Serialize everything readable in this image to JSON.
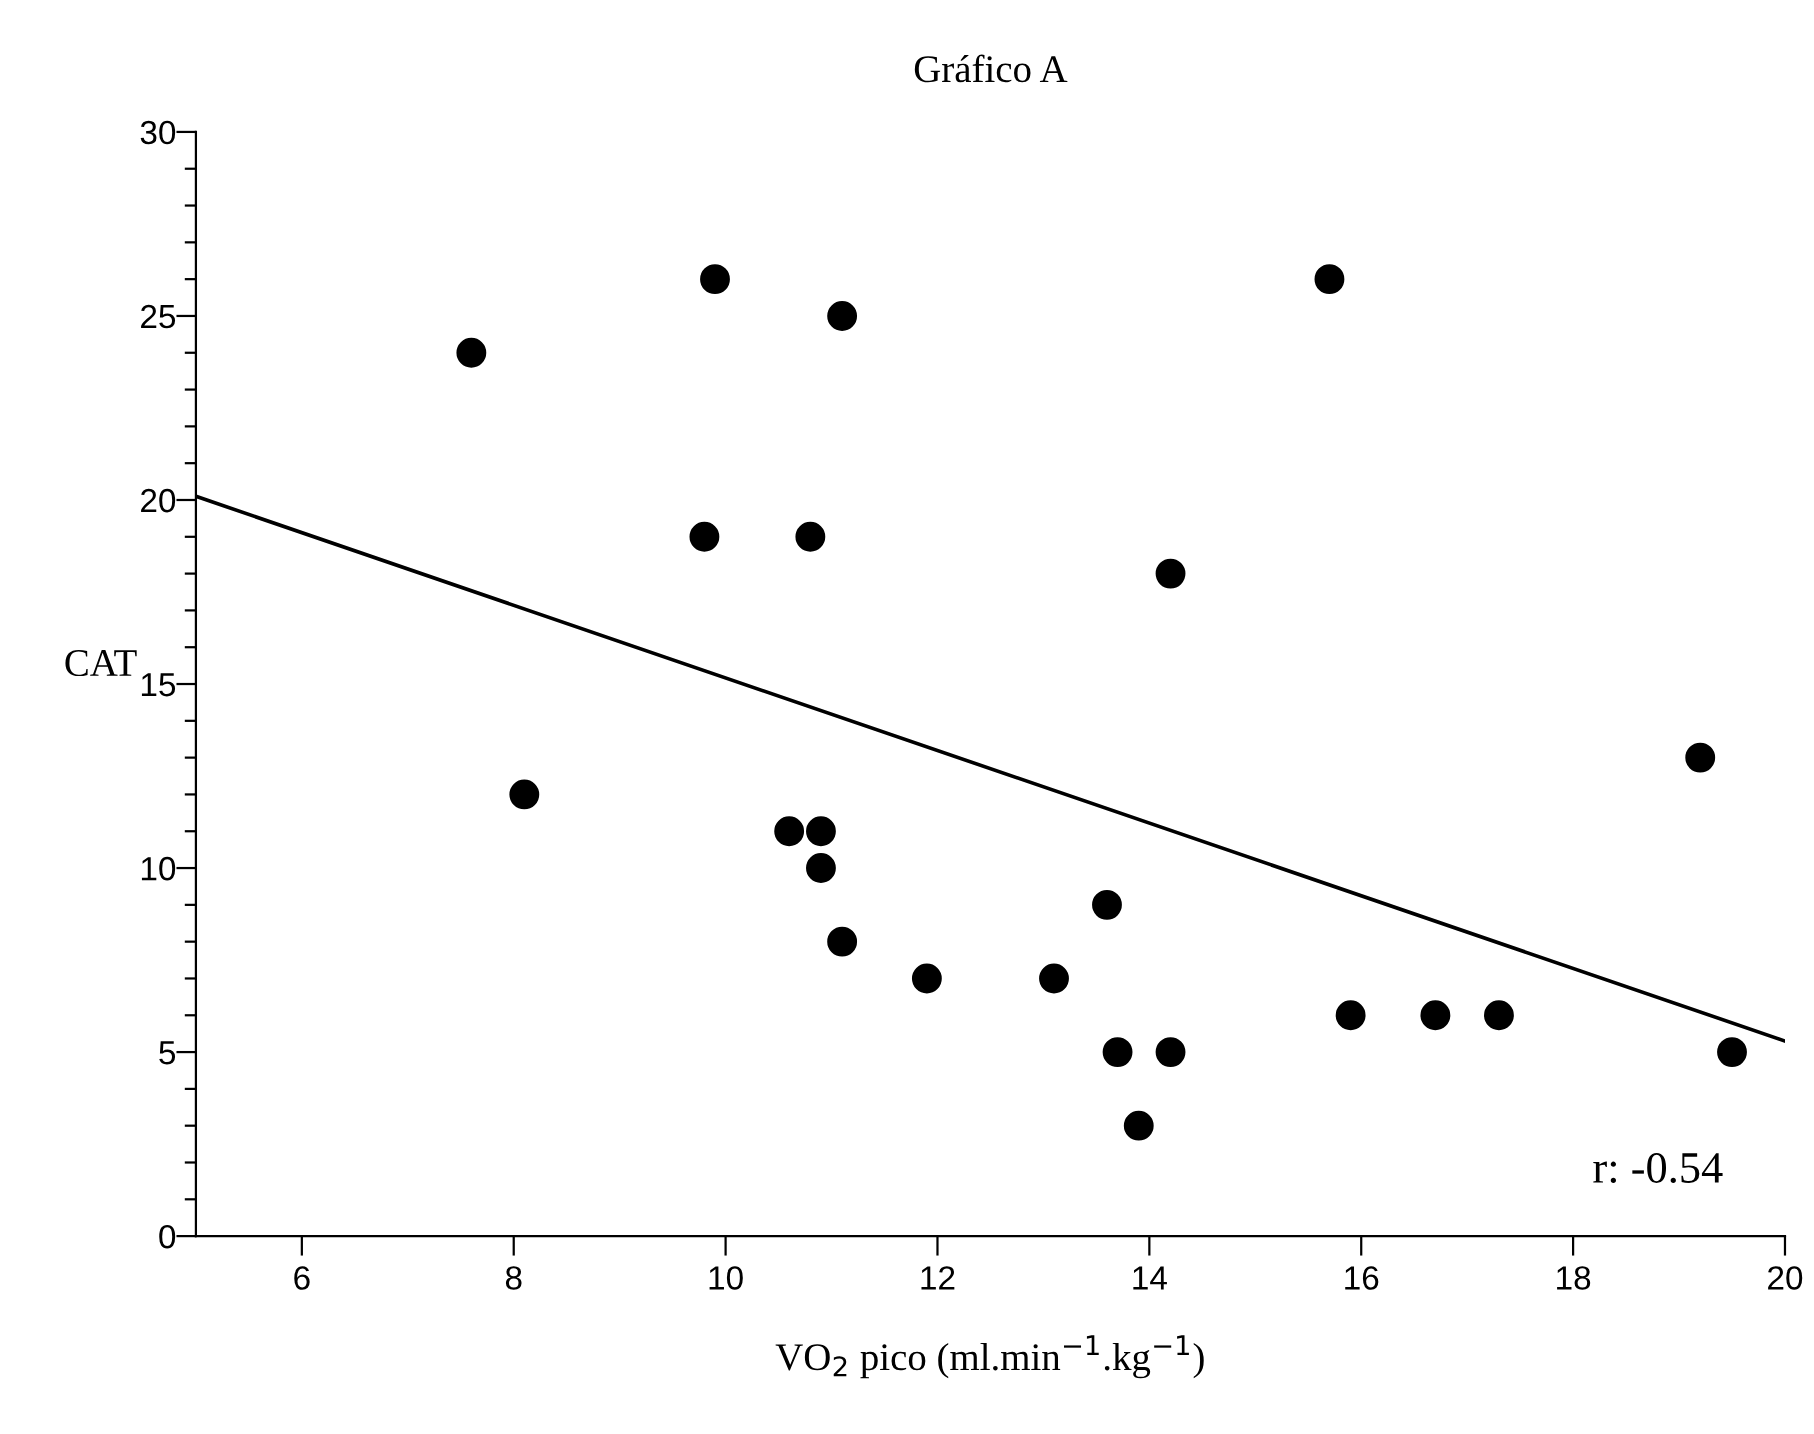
{
  "chart_data": {
    "type": "scatter",
    "title": "Gráfico A",
    "xlabel": "VO$_{2}$ pico (ml.min$^{−1}$.kg$^{−1}$)",
    "ylabel": "CAT",
    "xlim": [
      5,
      20
    ],
    "ylim": [
      0,
      30
    ],
    "xticks": [
      6,
      8,
      10,
      12,
      14,
      16,
      18,
      20
    ],
    "yticks": [
      0,
      {
        "value": 1,
        "label": null
      },
      {
        "value": 2,
        "label": null
      },
      {
        "value": 3,
        "label": null
      },
      {
        "value": 4,
        "label": null
      },
      5,
      {
        "value": 6,
        "label": null
      },
      {
        "value": 7,
        "label": null
      },
      {
        "value": 8,
        "label": null
      },
      {
        "value": 9,
        "label": null
      },
      10,
      {
        "value": 11,
        "label": null
      },
      {
        "value": 12,
        "label": null
      },
      {
        "value": 13,
        "label": null
      },
      {
        "value": 14,
        "label": null
      },
      15,
      {
        "value": 16,
        "label": null
      },
      {
        "value": 17,
        "label": null
      },
      {
        "value": 18,
        "label": null
      },
      {
        "value": 19,
        "label": null
      },
      20,
      {
        "value": 21,
        "label": null
      },
      {
        "value": 22,
        "label": null
      },
      {
        "value": 23,
        "label": null
      },
      {
        "value": 24,
        "label": null
      },
      25,
      {
        "value": 26,
        "label": null
      },
      {
        "value": 27,
        "label": null
      },
      {
        "value": 28,
        "label": null
      },
      {
        "value": 29,
        "label": null
      },
      30
    ],
    "grid": false,
    "legend": false,
    "marker": "circle",
    "series": [
      {
        "color": "#000000",
        "x": [
          7.6,
          9.9,
          11.1,
          9.8,
          10.8,
          8.1,
          10.6,
          10.9,
          10.9,
          11.1,
          11.9,
          15.7,
          14.2,
          19.2,
          13.6,
          13.1,
          13.7,
          14.2,
          13.9,
          15.9,
          16.7,
          17.3,
          19.5
        ],
        "values": [
          24,
          26,
          25,
          19,
          19,
          12,
          11,
          11,
          10,
          8,
          7,
          26,
          18,
          13,
          9,
          7,
          5,
          5,
          3,
          6,
          6,
          6,
          5
        ]
      },
      {
        "type": "line",
        "color": "#000000",
        "marker": "none",
        "line_style": "solid",
        "x": [
          5,
          20
        ],
        "values": [
          20.1,
          5.3
        ]
      }
    ],
    "annotations": [
      "r: -0.54"
    ]
  }
}
